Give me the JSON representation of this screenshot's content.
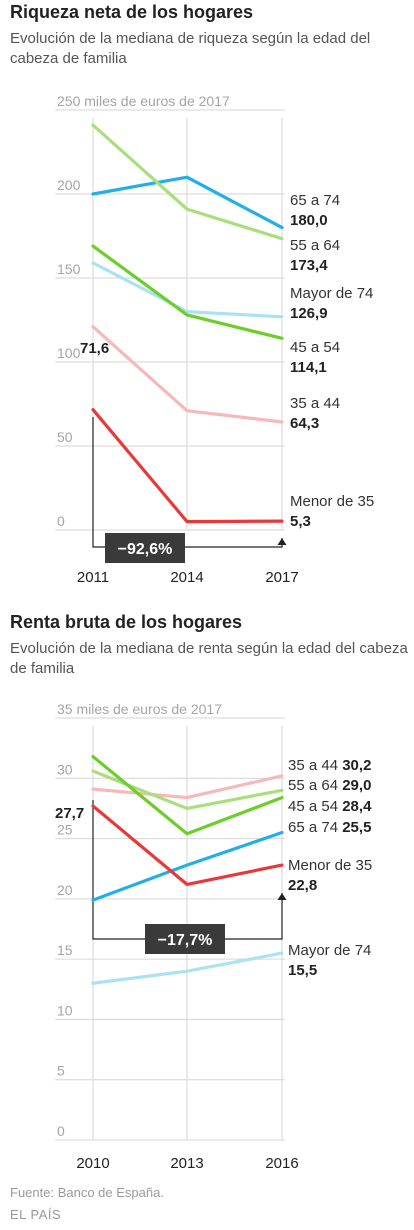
{
  "chart_data": [
    {
      "type": "line",
      "title": "Riqueza neta de los hogares",
      "subtitle": "Evolución de la mediana de riqueza según la edad del cabeza de familia",
      "unit_label": "miles de euros de 2017",
      "x": [
        "2011",
        "2014",
        "2017"
      ],
      "yticks": [
        0,
        50,
        100,
        150,
        200,
        250
      ],
      "ylim": [
        0,
        250
      ],
      "grid": true,
      "series": [
        {
          "name": "65 a 74",
          "values": [
            200,
            210,
            180.0
          ],
          "color": "#22aee8",
          "end_label": "180,0"
        },
        {
          "name": "55 a 64",
          "values": [
            241,
            191,
            173.4
          ],
          "color": "#a8df7a",
          "end_label": "173,4"
        },
        {
          "name": "Mayor de 74",
          "values": [
            159,
            130,
            126.9
          ],
          "color": "#a9e2f5",
          "end_label": "126,9"
        },
        {
          "name": "45 a 54",
          "values": [
            169,
            128,
            114.1
          ],
          "color": "#6cce2a",
          "end_label": "114,1"
        },
        {
          "name": "35 a 44",
          "values": [
            121,
            71,
            64.3
          ],
          "color": "#f7b8b8",
          "end_label": "64,3"
        },
        {
          "name": "Menor de 35",
          "values": [
            71.6,
            5,
            5.3
          ],
          "color": "#e8393a",
          "end_label": "5,3",
          "start_label": "71,6"
        }
      ],
      "annotation": {
        "text": "−92,6%"
      }
    },
    {
      "type": "line",
      "title": "Renta bruta de los hogares",
      "subtitle": "Evolución de la mediana de renta según la edad del cabeza de familia",
      "unit_label": "miles de euros de 2017",
      "x": [
        "2010",
        "2013",
        "2016"
      ],
      "yticks": [
        0,
        5,
        10,
        15,
        20,
        25,
        30,
        35
      ],
      "ylim": [
        0,
        35
      ],
      "grid": true,
      "series": [
        {
          "name": "35 a 44",
          "values": [
            29.1,
            28.4,
            30.2
          ],
          "color": "#f7b8b8",
          "end_label": "30,2"
        },
        {
          "name": "55 a 64",
          "values": [
            30.6,
            27.5,
            29.0
          ],
          "color": "#a8df7a",
          "end_label": "29,0"
        },
        {
          "name": "45 a 54",
          "values": [
            31.8,
            25.4,
            28.4
          ],
          "color": "#6cce2a",
          "end_label": "28,4"
        },
        {
          "name": "65 a 74",
          "values": [
            19.9,
            22.8,
            25.5
          ],
          "color": "#22aee8",
          "end_label": "25,5"
        },
        {
          "name": "Menor de 35",
          "values": [
            27.7,
            21.2,
            22.8
          ],
          "color": "#e8393a",
          "end_label": "22,8",
          "start_label": "27,7"
        },
        {
          "name": "Mayor de 74",
          "values": [
            13.0,
            14.0,
            15.5
          ],
          "color": "#a9e2f5",
          "end_label": "15,5"
        }
      ],
      "annotation": {
        "text": "−17,7%"
      }
    }
  ],
  "source": "Fuente: Banco de España.",
  "brand": "EL PAÍS"
}
